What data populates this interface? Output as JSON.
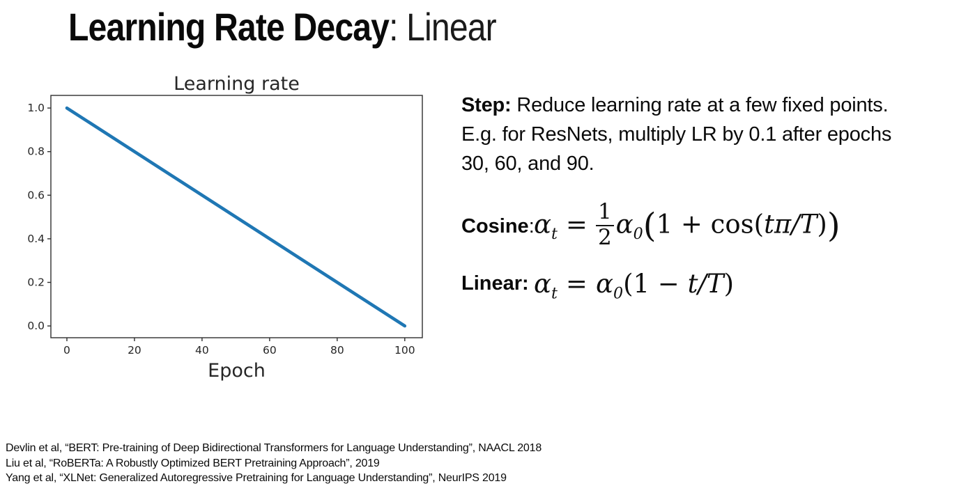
{
  "title": {
    "bold": "Learning Rate Decay",
    "regular": ": Linear"
  },
  "chart_data": {
    "type": "line",
    "title": "Learning rate",
    "xlabel": "Epoch",
    "ylabel": "",
    "xticks": [
      0,
      20,
      40,
      60,
      80,
      100
    ],
    "yticks": [
      "0.0",
      "0.2",
      "0.4",
      "0.6",
      "0.8",
      "1.0"
    ],
    "xlim": [
      -4.74,
      105.2
    ],
    "ylim": [
      -0.054,
      1.058
    ],
    "grid": false,
    "legend": "none",
    "line_color": "#1f77b4",
    "axis_color": "#2e2e2e",
    "text_color": "#262626",
    "series": [
      {
        "name": "learning-rate-linear-decay",
        "x": [
          0,
          100
        ],
        "values": [
          1.0,
          0.0
        ]
      }
    ]
  },
  "step_note": {
    "bold": "Step:",
    "line1_rest": " Reduce learning rate at a few fixed points.",
    "line2": "E.g. for ResNets, multiply LR by 0.1 after epochs",
    "line3": "30, 60, and 90."
  },
  "math": {
    "cosine": {
      "label": "Cosine",
      "colon": ":",
      "alpha_t": {
        "base": "α",
        "sub": "t"
      },
      "equals": "=",
      "frac": {
        "num": "1",
        "den": "2"
      },
      "alpha_0": {
        "base": "α",
        "sub": "0"
      },
      "paren_open": "(",
      "body": "1 + cos(",
      "arg": "tπ/T",
      "paren_inner_close": ")",
      "paren_close": ")"
    },
    "linear": {
      "label": "Linear:",
      "alpha_t": {
        "base": "α",
        "sub": "t"
      },
      "equals": "=",
      "alpha_0": {
        "base": "α",
        "sub": "0"
      },
      "open": "(1 − ",
      "arg": "t/T",
      "close": ")"
    }
  },
  "citations": [
    "Devlin et al, “BERT: Pre-training of Deep Bidirectional Transformers for Language Understanding”, NAACL 2018",
    "Liu et al, “RoBERTa: A Robustly Optimized BERT Pretraining Approach”, 2019",
    "Yang et al, “XLNet: Generalized Autoregressive Pretraining for Language Understanding”, NeurIPS 2019"
  ]
}
